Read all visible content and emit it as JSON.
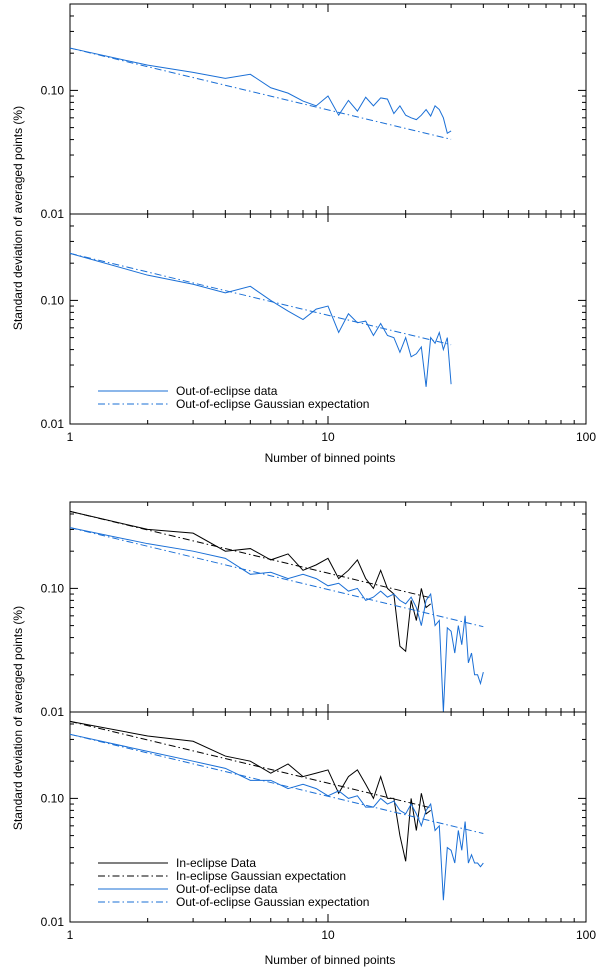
{
  "colors": {
    "black": "#000000",
    "blue": "#1a6fd6"
  },
  "chart_data": [
    {
      "type": "line",
      "figure": 1,
      "ylabel": "Standard deviation of averaged points (%)",
      "xlabel": "",
      "xscale": "log",
      "yscale": "log",
      "xlim": [
        1,
        100
      ],
      "ylim": [
        0.01,
        0.5
      ],
      "y_ticks": [
        "0.01",
        "0.10"
      ],
      "x_ticks": [],
      "legend": [],
      "series": [
        {
          "name": "Out-of-eclipse data",
          "style": "solid",
          "color": "#1a6fd6",
          "x": [
            1,
            2,
            3,
            4,
            5,
            6,
            7,
            8,
            9,
            10,
            11,
            12,
            13,
            14,
            15,
            16,
            17,
            18,
            19,
            20,
            21,
            22,
            23,
            24,
            25,
            26,
            27,
            28,
            29,
            30
          ],
          "y": [
            0.22,
            0.16,
            0.14,
            0.125,
            0.135,
            0.105,
            0.095,
            0.082,
            0.075,
            0.09,
            0.063,
            0.083,
            0.068,
            0.088,
            0.075,
            0.087,
            0.085,
            0.065,
            0.075,
            0.063,
            0.06,
            0.058,
            0.063,
            0.07,
            0.062,
            0.075,
            0.07,
            0.06,
            0.045,
            0.047
          ]
        },
        {
          "name": "Out-of-eclipse Gaussian expectation",
          "style": "dashdot",
          "color": "#1a6fd6",
          "x": [
            1,
            30
          ],
          "y": [
            0.22,
            0.0402
          ]
        }
      ]
    },
    {
      "type": "line",
      "figure": 1,
      "ylabel": "",
      "xlabel": "Number of binned points",
      "xscale": "log",
      "yscale": "log",
      "xlim": [
        1,
        100
      ],
      "ylim": [
        0.01,
        0.5
      ],
      "y_ticks": [
        "0.01",
        "0.10"
      ],
      "x_ticks": [
        "1",
        "10",
        "100"
      ],
      "legend": [
        "Out-of-eclipse data",
        "Out-of-eclipse Gaussian expectation"
      ],
      "series": [
        {
          "name": "Out-of-eclipse data",
          "style": "solid",
          "color": "#1a6fd6",
          "x": [
            1,
            2,
            3,
            4,
            5,
            6,
            7,
            8,
            9,
            10,
            11,
            12,
            13,
            14,
            15,
            16,
            17,
            18,
            19,
            20,
            21,
            22,
            23,
            24,
            25,
            26,
            27,
            28,
            29,
            30
          ],
          "y": [
            0.24,
            0.16,
            0.135,
            0.115,
            0.13,
            0.1,
            0.082,
            0.07,
            0.085,
            0.09,
            0.055,
            0.078,
            0.066,
            0.068,
            0.052,
            0.065,
            0.052,
            0.05,
            0.038,
            0.05,
            0.035,
            0.037,
            0.042,
            0.02,
            0.05,
            0.045,
            0.055,
            0.04,
            0.05,
            0.021
          ]
        },
        {
          "name": "Out-of-eclipse Gaussian expectation",
          "style": "dashdot",
          "color": "#1a6fd6",
          "x": [
            1,
            30
          ],
          "y": [
            0.24,
            0.0438
          ]
        }
      ]
    },
    {
      "type": "line",
      "figure": 2,
      "ylabel": "Standard deviation of averaged points (%)",
      "xlabel": "",
      "xscale": "log",
      "yscale": "log",
      "xlim": [
        1,
        100
      ],
      "ylim": [
        0.01,
        0.5
      ],
      "y_ticks": [
        "0.01",
        "0.10"
      ],
      "x_ticks": [],
      "legend": [],
      "series": [
        {
          "name": "In-eclipse Data",
          "style": "solid",
          "color": "#000000",
          "x": [
            1,
            2,
            3,
            4,
            5,
            6,
            7,
            8,
            9,
            10,
            11,
            12,
            13,
            14,
            15,
            16,
            17,
            18,
            19,
            20,
            21,
            22,
            23,
            24,
            25
          ],
          "y": [
            0.42,
            0.3,
            0.28,
            0.2,
            0.21,
            0.17,
            0.19,
            0.14,
            0.155,
            0.175,
            0.12,
            0.14,
            0.17,
            0.12,
            0.1,
            0.14,
            0.1,
            0.09,
            0.034,
            0.031,
            0.08,
            0.055,
            0.1,
            0.07,
            0.075
          ]
        },
        {
          "name": "In-eclipse Gaussian expectation",
          "style": "dashdot",
          "color": "#000000",
          "x": [
            1,
            25
          ],
          "y": [
            0.42,
            0.084
          ]
        },
        {
          "name": "Out-of-eclipse data",
          "style": "solid",
          "color": "#1a6fd6",
          "x": [
            1,
            2,
            3,
            4,
            5,
            6,
            7,
            8,
            9,
            10,
            11,
            12,
            13,
            14,
            15,
            16,
            17,
            18,
            19,
            20,
            21,
            22,
            23,
            24,
            25,
            26,
            27,
            28,
            29,
            30,
            31,
            32,
            33,
            34,
            35,
            36,
            37,
            38,
            39,
            40
          ],
          "y": [
            0.31,
            0.23,
            0.2,
            0.175,
            0.13,
            0.135,
            0.12,
            0.13,
            0.12,
            0.105,
            0.11,
            0.095,
            0.1,
            0.08,
            0.085,
            0.095,
            0.085,
            0.09,
            0.08,
            0.075,
            0.085,
            0.07,
            0.05,
            0.08,
            0.09,
            0.05,
            0.055,
            0.01,
            0.048,
            0.045,
            0.03,
            0.05,
            0.035,
            0.06,
            0.025,
            0.03,
            0.02,
            0.02,
            0.017,
            0.021
          ]
        },
        {
          "name": "Out-of-eclipse Gaussian expectation",
          "style": "dashdot",
          "color": "#1a6fd6",
          "x": [
            1,
            40
          ],
          "y": [
            0.31,
            0.049
          ]
        }
      ]
    },
    {
      "type": "line",
      "figure": 2,
      "ylabel": "",
      "xlabel": "Number of binned points",
      "xscale": "log",
      "yscale": "log",
      "xlim": [
        1,
        100
      ],
      "ylim": [
        0.01,
        0.5
      ],
      "y_ticks": [
        "0.01",
        "0.10"
      ],
      "x_ticks": [
        "1",
        "10",
        "100"
      ],
      "legend": [
        "In-eclipse Data",
        "In-eclipse Gaussian expectation",
        "Out-of-eclipse data",
        "Out-of-eclipse Gaussian expectation"
      ],
      "series": [
        {
          "name": "In-eclipse Data",
          "style": "solid",
          "color": "#000000",
          "x": [
            1,
            2,
            3,
            4,
            5,
            6,
            7,
            8,
            9,
            10,
            11,
            12,
            13,
            14,
            15,
            16,
            17,
            18,
            19,
            20,
            21,
            22,
            23,
            24,
            25
          ],
          "y": [
            0.42,
            0.32,
            0.29,
            0.22,
            0.2,
            0.16,
            0.19,
            0.15,
            0.16,
            0.17,
            0.11,
            0.15,
            0.17,
            0.13,
            0.1,
            0.15,
            0.1,
            0.1,
            0.05,
            0.031,
            0.1,
            0.055,
            0.11,
            0.075,
            0.08
          ]
        },
        {
          "name": "In-eclipse Gaussian expectation",
          "style": "dashdot",
          "color": "#000000",
          "x": [
            1,
            25
          ],
          "y": [
            0.42,
            0.084
          ]
        },
        {
          "name": "Out-of-eclipse data",
          "style": "solid",
          "color": "#1a6fd6",
          "x": [
            1,
            2,
            3,
            4,
            5,
            6,
            7,
            8,
            9,
            10,
            11,
            12,
            13,
            14,
            15,
            16,
            17,
            18,
            19,
            20,
            21,
            22,
            23,
            24,
            25,
            26,
            27,
            28,
            29,
            30,
            31,
            32,
            33,
            34,
            35,
            36,
            37,
            38,
            39,
            40
          ],
          "y": [
            0.33,
            0.24,
            0.2,
            0.175,
            0.14,
            0.14,
            0.12,
            0.13,
            0.12,
            0.105,
            0.115,
            0.1,
            0.105,
            0.085,
            0.085,
            0.1,
            0.09,
            0.095,
            0.08,
            0.075,
            0.09,
            0.075,
            0.06,
            0.08,
            0.09,
            0.055,
            0.06,
            0.015,
            0.04,
            0.038,
            0.03,
            0.055,
            0.038,
            0.065,
            0.03,
            0.035,
            0.03,
            0.03,
            0.028,
            0.03
          ]
        },
        {
          "name": "Out-of-eclipse Gaussian expectation",
          "style": "dashdot",
          "color": "#1a6fd6",
          "x": [
            1,
            40
          ],
          "y": [
            0.33,
            0.052
          ]
        }
      ]
    }
  ]
}
